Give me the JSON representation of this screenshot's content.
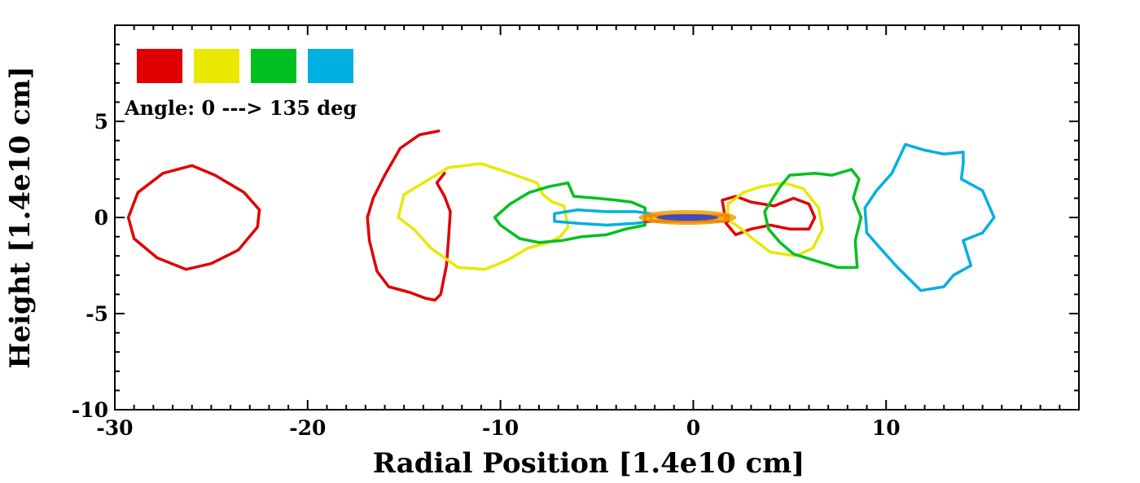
{
  "chart_data": {
    "type": "line",
    "title": "",
    "xlabel": "Radial Position [1.4e10 cm]",
    "ylabel": "Height [1.4e10 cm]",
    "xlim": [
      -30,
      20
    ],
    "ylim": [
      -10,
      10
    ],
    "x_ticks": [
      -30,
      -20,
      -10,
      0,
      10
    ],
    "y_ticks": [
      -10,
      -5,
      0,
      5
    ],
    "grid": false,
    "legend": {
      "position": "top-left",
      "text": "Angle: 0 ---> 135 deg",
      "colors": [
        "#e00000",
        "#e8e800",
        "#00c020",
        "#00b0e0"
      ]
    },
    "series": [
      {
        "color": "#e00000",
        "closed": true,
        "points": [
          [
            -29.3,
            0
          ],
          [
            -28.8,
            1.3
          ],
          [
            -27.5,
            2.3
          ],
          [
            -26,
            2.7
          ],
          [
            -24.8,
            2.2
          ],
          [
            -23.3,
            1.3
          ],
          [
            -22.5,
            0.4
          ],
          [
            -22.6,
            -0.5
          ],
          [
            -23.6,
            -1.7
          ],
          [
            -25,
            -2.4
          ],
          [
            -26.3,
            -2.7
          ],
          [
            -27.8,
            -2.1
          ],
          [
            -29,
            -1.1
          ],
          [
            -29.3,
            0
          ]
        ]
      },
      {
        "color": "#e00000",
        "closed": false,
        "points": [
          [
            -13.2,
            4.5
          ],
          [
            -14.2,
            4.3
          ],
          [
            -15.2,
            3.6
          ],
          [
            -16,
            2.2
          ],
          [
            -16.6,
            1
          ],
          [
            -16.9,
            0
          ],
          [
            -16.8,
            -1.2
          ],
          [
            -16.4,
            -2.8
          ],
          [
            -15.8,
            -3.6
          ],
          [
            -14.7,
            -3.9
          ],
          [
            -13.9,
            -4.2
          ],
          [
            -13.4,
            -4.3
          ],
          [
            -13.1,
            -4
          ],
          [
            -12.8,
            -2.5
          ],
          [
            -12.7,
            -1.2
          ],
          [
            -12.6,
            0.3
          ],
          [
            -12.9,
            1.1
          ],
          [
            -13.3,
            1.8
          ],
          [
            -12.9,
            2.3
          ]
        ]
      },
      {
        "color": "#e8e800",
        "closed": true,
        "points": [
          [
            -15.3,
            0
          ],
          [
            -15,
            1.2
          ],
          [
            -14,
            1.8
          ],
          [
            -12.7,
            2.6
          ],
          [
            -11,
            2.8
          ],
          [
            -9.5,
            2.3
          ],
          [
            -8.1,
            1.8
          ],
          [
            -7.8,
            1.2
          ],
          [
            -7.3,
            0.8
          ],
          [
            -6.7,
            0.6
          ],
          [
            -6.5,
            -0.5
          ],
          [
            -6.9,
            -1
          ],
          [
            -7.5,
            -1.3
          ],
          [
            -8.6,
            -1.6
          ],
          [
            -9.6,
            -2.2
          ],
          [
            -10.8,
            -2.7
          ],
          [
            -12.2,
            -2.6
          ],
          [
            -13.6,
            -1.6
          ],
          [
            -14.5,
            -0.6
          ],
          [
            -15.3,
            0
          ]
        ]
      },
      {
        "color": "#00c020",
        "closed": true,
        "points": [
          [
            -10.3,
            0
          ],
          [
            -9.5,
            0.7
          ],
          [
            -8.5,
            1.3
          ],
          [
            -7.5,
            1.6
          ],
          [
            -6.5,
            1.8
          ],
          [
            -6.2,
            1.1
          ],
          [
            -5,
            1
          ],
          [
            -4,
            0.9
          ],
          [
            -3.2,
            0.8
          ],
          [
            -2.5,
            0.5
          ],
          [
            -2.5,
            -0.4
          ],
          [
            -3.5,
            -0.6
          ],
          [
            -4.5,
            -0.9
          ],
          [
            -5.8,
            -1
          ],
          [
            -6.8,
            -1.2
          ],
          [
            -8,
            -1.3
          ],
          [
            -9,
            -1.1
          ],
          [
            -10,
            -0.4
          ],
          [
            -10.3,
            0
          ]
        ]
      },
      {
        "color": "#00b0e0",
        "closed": true,
        "points": [
          [
            -7.2,
            0.2
          ],
          [
            -6,
            0.4
          ],
          [
            -4.5,
            0.3
          ],
          [
            -3,
            0.3
          ],
          [
            -2.2,
            0.2
          ],
          [
            -2.2,
            -0.2
          ],
          [
            -3,
            -0.3
          ],
          [
            -4.5,
            -0.4
          ],
          [
            -6,
            -0.3
          ],
          [
            -7.2,
            -0.2
          ],
          [
            -7.2,
            0.2
          ]
        ]
      },
      {
        "color": "#e00000",
        "closed": true,
        "points": [
          [
            1.5,
            0.9
          ],
          [
            2.2,
            1.1
          ],
          [
            3,
            0.8
          ],
          [
            4.2,
            0.6
          ],
          [
            5.2,
            1
          ],
          [
            6,
            0.7
          ],
          [
            6.3,
            0
          ],
          [
            6,
            -0.6
          ],
          [
            5,
            -0.6
          ],
          [
            4,
            -0.4
          ],
          [
            3,
            -0.6
          ],
          [
            2.2,
            -0.9
          ],
          [
            1.7,
            -0.3
          ],
          [
            1.5,
            0.9
          ]
        ]
      },
      {
        "color": "#e8e800",
        "closed": true,
        "points": [
          [
            1.8,
            0.7
          ],
          [
            2.6,
            1.3
          ],
          [
            3.5,
            1.6
          ],
          [
            4.7,
            1.8
          ],
          [
            5.7,
            1.5
          ],
          [
            6.5,
            0.5
          ],
          [
            6.7,
            -0.6
          ],
          [
            6.2,
            -1.6
          ],
          [
            5.3,
            -2
          ],
          [
            4,
            -1.8
          ],
          [
            3.2,
            -1.2
          ],
          [
            2.5,
            -0.6
          ],
          [
            1.8,
            -0.1
          ],
          [
            1.8,
            0.7
          ]
        ]
      },
      {
        "color": "#00c020",
        "closed": true,
        "points": [
          [
            3.7,
            0.3
          ],
          [
            4.5,
            1.6
          ],
          [
            5,
            2.2
          ],
          [
            6.3,
            2.3
          ],
          [
            7.2,
            2.2
          ],
          [
            8.2,
            2.5
          ],
          [
            8.6,
            2
          ],
          [
            8.3,
            1
          ],
          [
            8.7,
            0
          ],
          [
            8.4,
            -1.2
          ],
          [
            8.5,
            -2.6
          ],
          [
            7.5,
            -2.6
          ],
          [
            6.5,
            -2.3
          ],
          [
            5.2,
            -1.9
          ],
          [
            4.5,
            -1.3
          ],
          [
            3.9,
            -0.6
          ],
          [
            3.7,
            0.3
          ]
        ]
      },
      {
        "color": "#00b0e0",
        "closed": true,
        "points": [
          [
            8.9,
            0.5
          ],
          [
            9.5,
            1.4
          ],
          [
            10.3,
            2.3
          ],
          [
            11,
            3.8
          ],
          [
            12,
            3.5
          ],
          [
            13,
            3.3
          ],
          [
            14,
            3.4
          ],
          [
            14,
            2.8
          ],
          [
            13.9,
            2
          ],
          [
            15,
            1.4
          ],
          [
            15.6,
            0
          ],
          [
            15,
            -0.8
          ],
          [
            14,
            -1.2
          ],
          [
            14.4,
            -2.5
          ],
          [
            13.5,
            -3
          ],
          [
            13,
            -3.6
          ],
          [
            11.8,
            -3.8
          ],
          [
            11.3,
            -3.3
          ],
          [
            10.5,
            -2.5
          ],
          [
            9.7,
            -1.6
          ],
          [
            9,
            -0.8
          ],
          [
            8.9,
            0.5
          ]
        ]
      },
      {
        "color": "#e00000",
        "closed": false,
        "points": [
          [
            -2.5,
            0.1
          ],
          [
            1.8,
            0.1
          ],
          [
            1.8,
            -0.2
          ],
          [
            -2.5,
            -0.2
          ],
          [
            -2.5,
            0.1
          ]
        ]
      }
    ]
  }
}
